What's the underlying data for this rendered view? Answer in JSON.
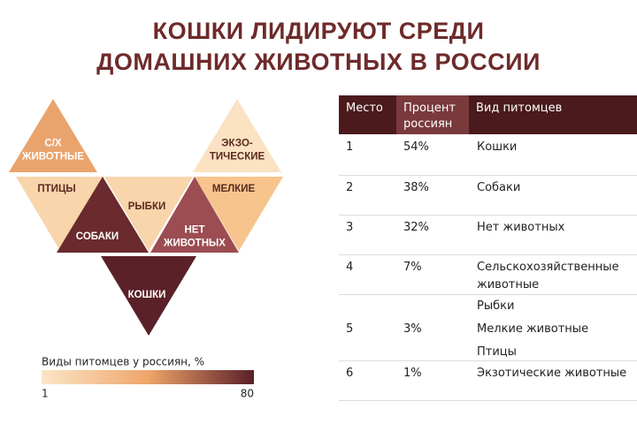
{
  "header": {
    "title": [
      "КОШКИ ЛИДИРУЮТ СРЕДИ",
      "ДОМАШНИХ ЖИВОТНЫХ В РОССИИ"
    ]
  },
  "triangles": [
    {
      "label": [
        "С/Х",
        "ЖИВОТНЫЕ"
      ],
      "color": "#e9a46e"
    },
    {
      "label": [
        "ЭКЗО-",
        "ТИЧЕСКИЕ"
      ],
      "color": "#fbe2c2"
    },
    {
      "label": [
        "ПТИЦЫ"
      ],
      "color": "#f8d5ab"
    },
    {
      "label": [
        "СОБАКИ"
      ],
      "color": "#6a2a2e"
    },
    {
      "label": [
        "РЫБКИ"
      ],
      "color": "#f8d5ab"
    },
    {
      "label": [
        "НЕТ",
        "ЖИВОТНЫХ"
      ],
      "color": "#9c4d52"
    },
    {
      "label": [
        "МЕЛКИЕ"
      ],
      "color": "#f6c48c"
    },
    {
      "label": [
        "КОШКИ"
      ],
      "color": "#5a2128"
    }
  ],
  "legend": {
    "title": "Виды питомцев у россиян, %",
    "min": 1,
    "max": 80,
    "colors": [
      "#fbe6c8",
      "#efa56a",
      "#5a1f29"
    ]
  },
  "table": {
    "header": [
      "Место",
      "Процент россиян",
      "Вид питомцев"
    ],
    "header_colors": [
      "#4a1a1c",
      "#7a3a3c",
      "#4a1a1c"
    ],
    "rows": [
      [
        "1",
        "54%",
        [
          "Кошки"
        ]
      ],
      [
        "2",
        "38%",
        [
          "Собаки"
        ]
      ],
      [
        "3",
        "32%",
        [
          "Нет животных"
        ]
      ],
      [
        "4",
        "7%",
        [
          "Сельскохозяйственные животные"
        ]
      ],
      [
        "5",
        "3%",
        [
          "Рыбки",
          "Мелкие животные",
          "Птицы"
        ]
      ],
      [
        "6",
        "1%",
        [
          "Экзотические животные"
        ]
      ]
    ]
  }
}
